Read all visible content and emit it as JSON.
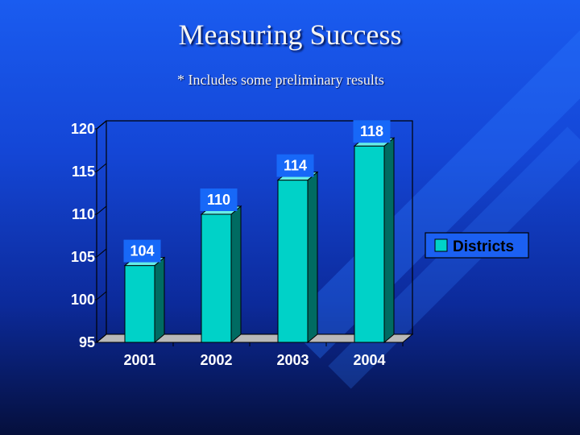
{
  "slide": {
    "title": "Measuring Success",
    "subtitle": "* Includes some preliminary results"
  },
  "colors": {
    "bar_front": "#00d2c8",
    "bar_side": "#006b62",
    "bar_top": "#66ede6",
    "label_bg": "#1768f8",
    "floor": "#b9b9b9",
    "legend_bg": "#1b60f2",
    "legend_box": "#ffffff"
  },
  "chart_data": {
    "type": "bar",
    "categories": [
      "2001",
      "2002",
      "2003",
      "2004"
    ],
    "series": [
      {
        "name": "Districts",
        "values": [
          104,
          110,
          114,
          118
        ]
      }
    ],
    "ylim": [
      95,
      120
    ],
    "yticks": [
      95,
      100,
      105,
      110,
      115,
      120
    ],
    "xlabel": "",
    "ylabel": "",
    "grid": false,
    "legend_position": "right",
    "three_d": true
  }
}
